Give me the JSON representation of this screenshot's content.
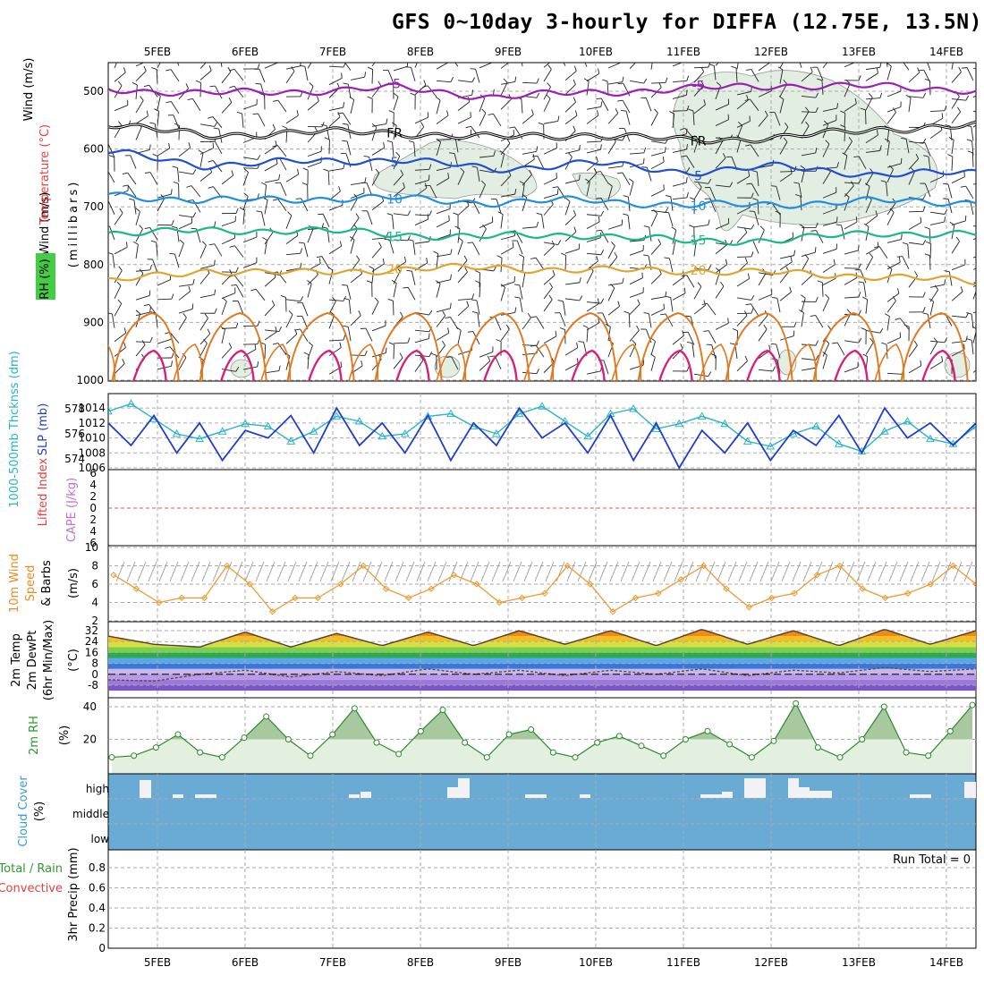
{
  "title": "GFS 0~10day 3-hourly for DIFFA (12.75E, 13.5N)",
  "dates": [
    "5FEB",
    "6FEB",
    "7FEB",
    "8FEB",
    "9FEB",
    "10FEB",
    "11FEB",
    "12FEB",
    "13FEB",
    "14FEB"
  ],
  "colors": {
    "grid": "#aaaaaa",
    "rh_fill": "#e3eee3",
    "cloud": "#6aabd6",
    "frame": "#000000"
  },
  "panels": {
    "upper_air": {
      "label_rh": "RH (%)",
      "label_temp": "Temperature (°C)",
      "label_wind": "Wind (m/s)",
      "label_press": "(millibars)"
    },
    "thickness_slp": {
      "label_thick": "1000-500mb Thcknss (dm)",
      "label_slp": "SLP (mb)"
    },
    "stability": {
      "label_li": "Lifted Index",
      "label_cape": "CAPE (J/kg)"
    },
    "wind10m": {
      "label_a": "10m Wind",
      "label_b": "Speed",
      "label_c": "& Barbs",
      "label_unit": "(m/s)"
    },
    "temp2m": {
      "label_a": "2m Temp",
      "label_b": "2m DewPt",
      "label_c": "(6hr Min/Max)",
      "label_unit": "(°C)"
    },
    "rh2m": {
      "label_a": "2m RH",
      "label_unit": "(%)"
    },
    "cloud": {
      "label_a": "Cloud Cover",
      "label_unit": "(%)",
      "levels": [
        "high",
        "middle",
        "low"
      ]
    },
    "precip": {
      "label_a": "Total / Rain",
      "label_b": "Convective",
      "label_c": "3hr Precip (mm)",
      "run_total": "Run Total = 0"
    }
  },
  "chart_data": [
    {
      "type": "line",
      "name": "upper-air cross-section",
      "yticks": [
        500,
        600,
        700,
        800,
        900,
        1000
      ],
      "isotherms": [
        {
          "label": "-5",
          "color": "#9a1fb4",
          "p": [
            496,
            504,
            500,
            494,
            510,
            502,
            496,
            490,
            492,
            498
          ]
        },
        {
          "label": "FR",
          "color": "#000000",
          "p": [
            555,
            578,
            570,
            572,
            580,
            575,
            585,
            580,
            565,
            560
          ]
        },
        {
          "label": "5",
          "color": "#1f4fd1",
          "p": [
            605,
            628,
            622,
            618,
            635,
            624,
            640,
            630,
            645,
            640
          ]
        },
        {
          "label": "10",
          "color": "#1f8fe0",
          "p": [
            678,
            690,
            686,
            685,
            693,
            688,
            698,
            695,
            690,
            692
          ]
        },
        {
          "label": "15",
          "color": "#17b88a",
          "p": [
            745,
            742,
            740,
            748,
            752,
            748,
            760,
            757,
            745,
            748
          ]
        },
        {
          "label": "20",
          "color": "#e0a530",
          "p": [
            830,
            810,
            815,
            808,
            805,
            810,
            810,
            815,
            820,
            830
          ]
        }
      ]
    },
    {
      "type": "line",
      "name": "thickness and slp",
      "yticks_thick": [
        574,
        576,
        578
      ],
      "yticks_slp": [
        1006,
        1008,
        1010,
        1012,
        1014
      ],
      "slp": [
        1012,
        1009,
        1013,
        1008,
        1012,
        1007,
        1011,
        1010,
        1013,
        1008,
        1014,
        1009,
        1012,
        1008,
        1013,
        1007,
        1012,
        1009,
        1014,
        1010,
        1012,
        1008,
        1013,
        1007,
        1012,
        1006,
        1011,
        1008,
        1012,
        1007,
        1011,
        1009,
        1013,
        1008,
        1014,
        1010,
        1012,
        1009,
        1012
      ],
      "thickness": [
        577.8,
        578.4,
        577.2,
        576.0,
        575.6,
        576.2,
        576.8,
        576.6,
        575.4,
        576.2,
        577.4,
        577.0,
        575.8,
        576.0,
        577.4,
        577.6,
        576.6,
        576.0,
        577.6,
        578.2,
        577.0,
        575.8,
        577.6,
        578.0,
        576.4,
        576.8,
        577.4,
        576.8,
        575.4,
        575.0,
        576.0,
        576.6,
        575.2,
        574.6,
        576.2,
        577.0,
        575.6,
        575.2,
        576.6
      ],
      "thick_color": "#28b4c8",
      "slp_color": "#1f3fc8"
    },
    {
      "type": "line",
      "name": "lifted index / cape",
      "yticks": [
        -6,
        -4,
        -2,
        0,
        2,
        4,
        6
      ]
    },
    {
      "type": "line",
      "name": "10m wind speed",
      "yticks": [
        2,
        4,
        6,
        8,
        10
      ],
      "values": [
        7,
        5.5,
        4,
        4.5,
        4.5,
        8,
        6,
        3,
        4.5,
        4.5,
        6,
        8,
        5.5,
        4.5,
        5.5,
        7,
        6,
        4,
        4.5,
        5,
        8,
        6,
        3,
        4.5,
        5,
        6.5,
        8,
        5.5,
        3.5,
        4.5,
        5,
        7,
        8,
        5.5,
        4.5,
        5,
        6,
        8,
        6
      ]
    },
    {
      "type": "area",
      "name": "2m temp dewpt",
      "yticks": [
        -8,
        0,
        8,
        16,
        24,
        32
      ],
      "temp": [
        28,
        22,
        20,
        31,
        20,
        30,
        21,
        31,
        21,
        32,
        22,
        32,
        21,
        33,
        22,
        32,
        21,
        33,
        22,
        32
      ],
      "dewpt": [
        -4,
        -5,
        0,
        3,
        -2,
        2,
        -1,
        4,
        0,
        3,
        -1,
        3,
        0,
        4,
        -1,
        3,
        1,
        5,
        2,
        4
      ]
    },
    {
      "type": "area",
      "name": "2m rh",
      "yticks": [
        20,
        40
      ],
      "values": [
        9,
        10,
        15,
        23,
        12,
        9,
        21,
        34,
        20,
        10,
        23,
        39,
        18,
        11,
        25,
        38,
        18,
        9,
        23,
        26,
        12,
        9,
        18,
        22,
        16,
        10,
        20,
        25,
        17,
        9,
        19,
        42,
        15,
        9,
        20,
        40,
        12,
        10,
        25,
        41
      ]
    },
    {
      "type": "bar",
      "name": "cloud cover",
      "levels": [
        "high",
        "middle",
        "low"
      ]
    },
    {
      "type": "bar",
      "name": "3hr precip",
      "yticks": [
        0,
        0.2,
        0.4,
        0.6,
        0.8
      ]
    }
  ]
}
